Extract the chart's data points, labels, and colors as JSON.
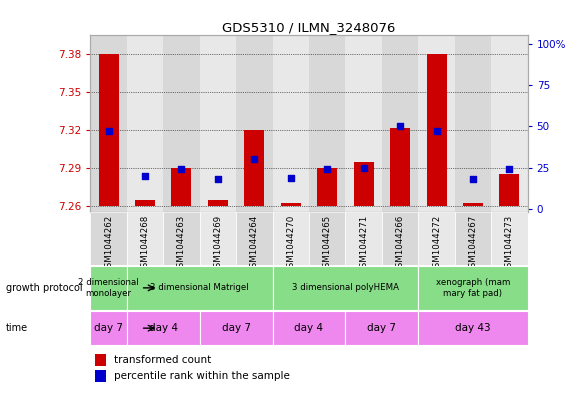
{
  "title": "GDS5310 / ILMN_3248076",
  "samples": [
    "GSM1044262",
    "GSM1044268",
    "GSM1044263",
    "GSM1044269",
    "GSM1044264",
    "GSM1044270",
    "GSM1044265",
    "GSM1044271",
    "GSM1044266",
    "GSM1044272",
    "GSM1044267",
    "GSM1044273"
  ],
  "transformed_counts": [
    7.38,
    7.265,
    7.29,
    7.265,
    7.32,
    7.262,
    7.29,
    7.295,
    7.322,
    7.38,
    7.262,
    7.285
  ],
  "percentile_ranks": [
    47,
    20,
    24,
    18,
    30,
    19,
    24,
    25,
    50,
    47,
    18,
    24
  ],
  "bar_bottom": 7.26,
  "ylim_left": [
    7.255,
    7.395
  ],
  "ylim_right": [
    -2,
    105
  ],
  "yticks_left": [
    7.26,
    7.29,
    7.32,
    7.35,
    7.38
  ],
  "yticks_right": [
    0,
    25,
    50,
    75,
    100
  ],
  "ytick_labels_right": [
    "0",
    "25",
    "50",
    "75",
    "100%"
  ],
  "bar_color": "#cc0000",
  "dot_color": "#0000cc",
  "left_axis_color": "#cc0000",
  "right_axis_color": "#0000cc",
  "plot_bg": "#ffffff",
  "col_bg_even": "#d8d8d8",
  "col_bg_odd": "#e8e8e8",
  "growth_protocol_groups": [
    {
      "label": "2 dimensional\nmonolayer",
      "start": 0,
      "end": 1
    },
    {
      "label": "3 dimensional Matrigel",
      "start": 1,
      "end": 5
    },
    {
      "label": "3 dimensional polyHEMA",
      "start": 5,
      "end": 9
    },
    {
      "label": "xenograph (mam\nmary fat pad)",
      "start": 9,
      "end": 12
    }
  ],
  "time_groups": [
    {
      "label": "day 7",
      "start": 0,
      "end": 1
    },
    {
      "label": "day 4",
      "start": 1,
      "end": 3
    },
    {
      "label": "day 7",
      "start": 3,
      "end": 5
    },
    {
      "label": "day 4",
      "start": 5,
      "end": 7
    },
    {
      "label": "day 7",
      "start": 7,
      "end": 9
    },
    {
      "label": "day 43",
      "start": 9,
      "end": 12
    }
  ],
  "gp_color": "#88dd88",
  "time_color": "#ee88ee",
  "legend_items": [
    {
      "label": "transformed count",
      "color": "#cc0000"
    },
    {
      "label": "percentile rank within the sample",
      "color": "#0000cc"
    }
  ]
}
